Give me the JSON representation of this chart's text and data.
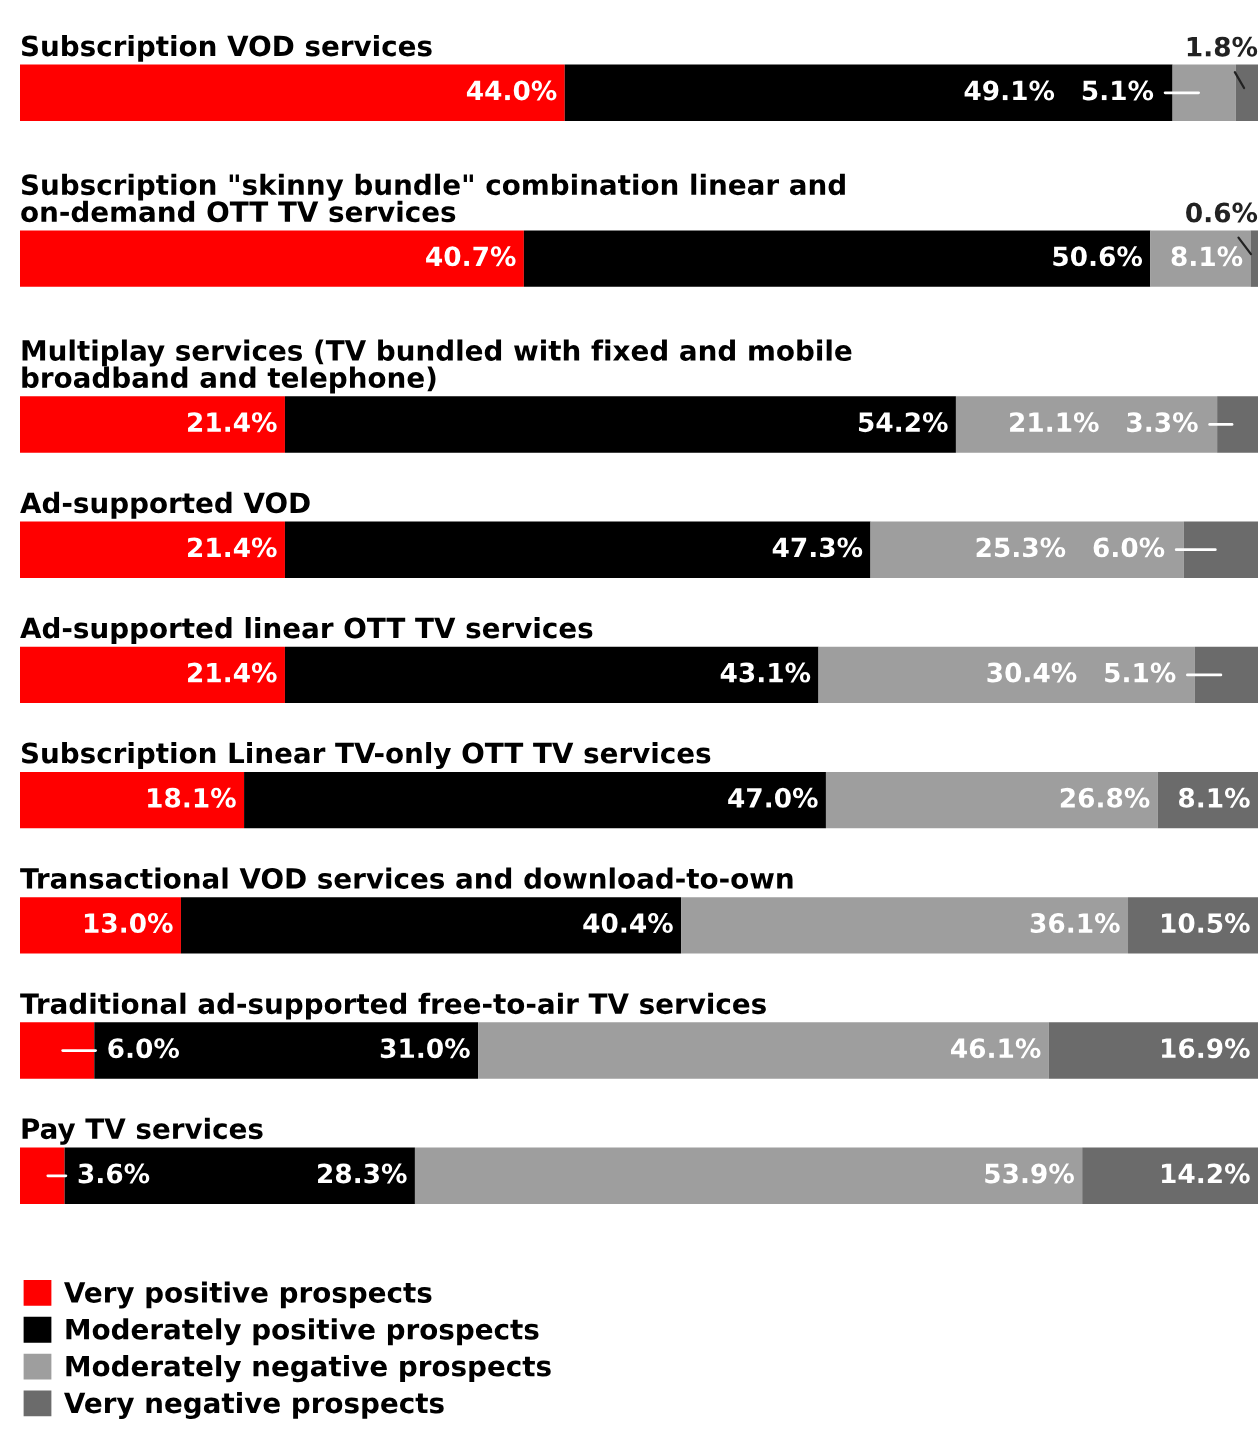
{
  "chart_data": {
    "type": "bar",
    "orientation": "horizontal",
    "stacked": true,
    "legend": "bottom",
    "categories": [
      "Subscription VOD services",
      "Subscription \"skinny bundle\" combination linear and\non-demand OTT TV services",
      "Multiplay services (TV bundled with fixed and mobile\nbroadband and telephone)",
      "Ad-supported VOD",
      "Ad-supported linear OTT TV services",
      "Subscription Linear TV-only OTT TV services",
      "Transactional VOD services and download-to-own",
      "Traditional ad-supported free-to-air TV services",
      "Pay TV services"
    ],
    "series": [
      {
        "name": "Very positive prospects",
        "color": "#ff0000",
        "values": [
          44.0,
          40.7,
          21.4,
          21.4,
          21.4,
          18.1,
          13.0,
          6.0,
          3.6
        ],
        "value_labels": [
          "44.0%",
          "40.7%",
          "21.4%",
          "21.4%",
          "21.4%",
          "18.1%",
          "13.0%",
          "6.0%",
          "3.6%"
        ]
      },
      {
        "name": "Moderately positive prospects",
        "color": "#000000",
        "values": [
          49.1,
          50.6,
          54.2,
          47.3,
          43.1,
          47.0,
          40.4,
          31.0,
          28.3
        ],
        "value_labels": [
          "49.1%",
          "50.6%",
          "54.2%",
          "47.3%",
          "43.1%",
          "47.0%",
          "40.4%",
          "31.0%",
          "28.3%"
        ]
      },
      {
        "name": "Moderately negative prospects",
        "color": "#9e9e9e",
        "values": [
          5.1,
          8.1,
          21.1,
          25.3,
          30.4,
          26.8,
          36.1,
          46.1,
          53.9
        ],
        "value_labels": [
          "5.1%",
          "8.1%",
          "21.1%",
          "25.3%",
          "30.4%",
          "26.8%",
          "36.1%",
          "46.1%",
          "53.9%"
        ]
      },
      {
        "name": "Very negative prospects",
        "color": "#6b6b6b",
        "values": [
          1.8,
          0.6,
          3.3,
          6.0,
          5.1,
          8.1,
          10.5,
          16.9,
          14.2
        ],
        "value_labels": [
          "1.8%",
          "0.6%",
          "3.3%",
          "6.0%",
          "5.1%",
          "8.1%",
          "10.5%",
          "16.9%",
          "14.2%"
        ]
      }
    ]
  }
}
